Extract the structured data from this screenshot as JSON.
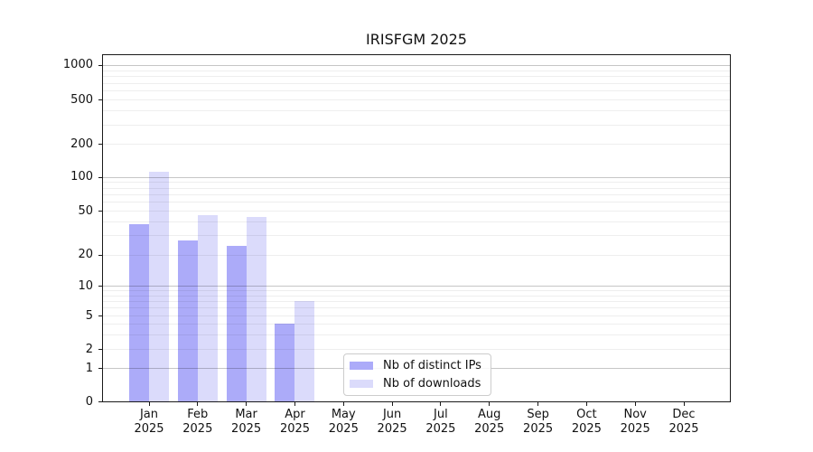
{
  "chart_data": {
    "type": "bar",
    "title": "IRISFGM 2025",
    "scale": "symlog",
    "grid": true,
    "xlabel": "",
    "ylabel": "",
    "ylim": [
      0,
      1000
    ],
    "yticks": [
      0,
      1,
      2,
      5,
      10,
      20,
      50,
      100,
      200,
      500,
      1000
    ],
    "categories": [
      "Jan 2025",
      "Feb 2025",
      "Mar 2025",
      "Apr 2025",
      "May 2025",
      "Jun 2025",
      "Jul 2025",
      "Aug 2025",
      "Sep 2025",
      "Oct 2025",
      "Nov 2025",
      "Dec 2025"
    ],
    "series": [
      {
        "name": "Nb of distinct IPs",
        "color": "#acabf9",
        "values": [
          38,
          27,
          24,
          4,
          0,
          0,
          0,
          0,
          0,
          0,
          0,
          0
        ]
      },
      {
        "name": "Nb of downloads",
        "color": "#dbdbfb",
        "values": [
          111,
          46,
          44,
          7,
          0,
          0,
          0,
          0,
          0,
          0,
          0,
          0
        ]
      }
    ],
    "legend_position": "lower center-left"
  }
}
